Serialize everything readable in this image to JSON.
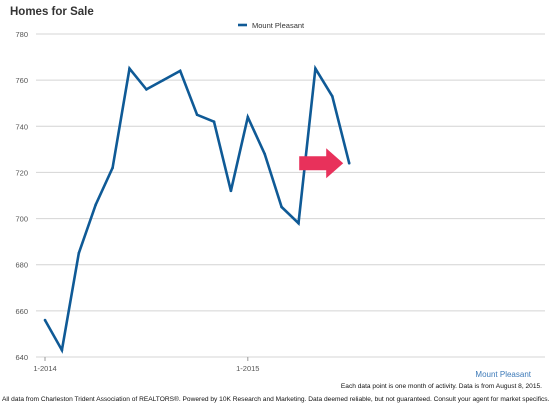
{
  "colors": {
    "series": "#0f5a96",
    "arrow": "#e8315b",
    "grid": "#d4d4d4",
    "axis_text": "#555555",
    "source_label": "#3d7ab8"
  },
  "chart_data": {
    "type": "line",
    "title": "Homes for Sale",
    "ylim": [
      640,
      780
    ],
    "yticks": [
      640,
      660,
      680,
      700,
      720,
      740,
      760,
      780
    ],
    "x_tick_labels": [
      "1-2014",
      "1-2015"
    ],
    "x": [
      "1-2014",
      "2-2014",
      "3-2014",
      "4-2014",
      "5-2014",
      "6-2014",
      "7-2014",
      "8-2014",
      "9-2014",
      "10-2014",
      "11-2014",
      "12-2014",
      "1-2015",
      "2-2015",
      "3-2015",
      "4-2015",
      "5-2015",
      "6-2015",
      "7-2015"
    ],
    "series": [
      {
        "name": "Mount Pleasant",
        "values": [
          656,
          643,
          685,
          706,
          722,
          765,
          756,
          760,
          764,
          745,
          742,
          712,
          744,
          728,
          705,
          698,
          765,
          753,
          724
        ]
      }
    ],
    "legend_position": "top-center",
    "grid": true,
    "source_label": "Mount Pleasant",
    "annotation": "arrow pointing to latest value"
  },
  "footnotes": {
    "data_point": "Each data point is one month of activity. Data is from August 8, 2015.",
    "disclaimer": "All data from Charleston Trident Association of REALTORS®. Powered by 10K Research and Marketing. Data deemed reliable, but not guaranteed. Consult your agent for market specifics."
  }
}
